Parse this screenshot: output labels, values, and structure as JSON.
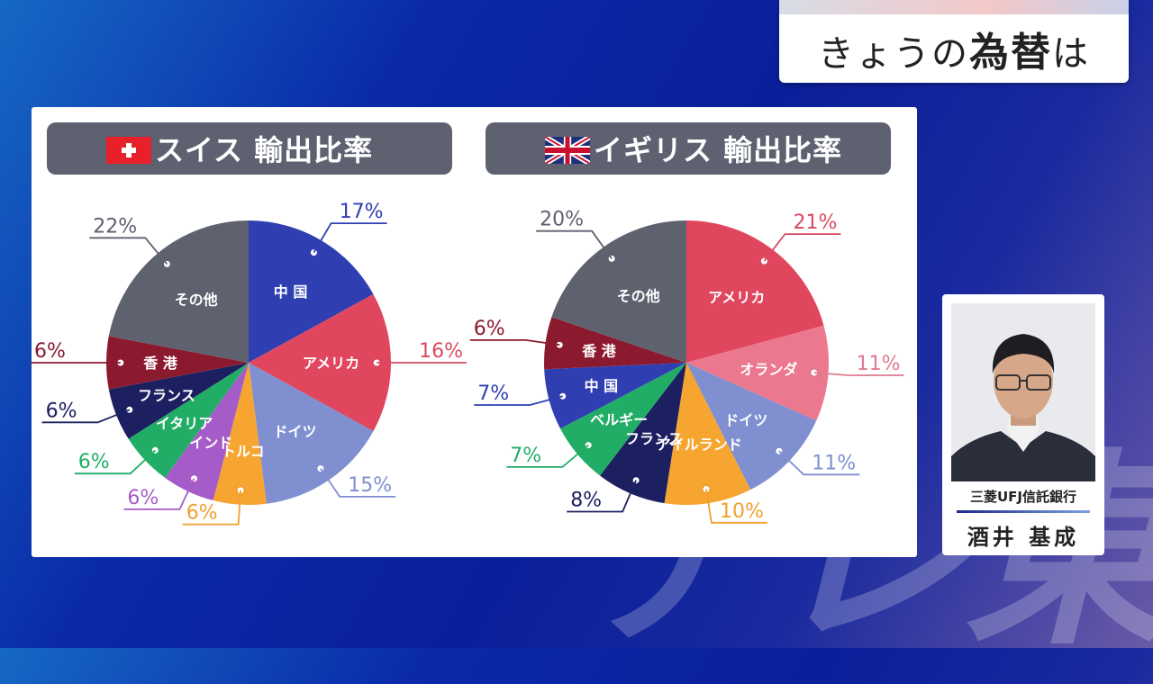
{
  "show_title": {
    "prefix": "きょうの",
    "bold": "為替",
    "suffix": "は"
  },
  "watermark": "テレ東",
  "speaker": {
    "organization": "三菱UFJ信託銀行",
    "name": "酒井 基成"
  },
  "chart_data": [
    {
      "type": "pie",
      "title": "スイス 輸出比率",
      "flag": "switzerland-flag",
      "start_angle_deg": 0,
      "direction": "clockwise",
      "slices": [
        {
          "label": "中 国",
          "value": 17,
          "percent_label": "17%",
          "color": "#2f3fb2",
          "value_color": "#2f3fb2",
          "text_color": "#ffffff"
        },
        {
          "label": "アメリカ",
          "value": 16,
          "percent_label": "16%",
          "color": "#e0475e",
          "value_color": "#d84a60",
          "text_color": "#ffffff"
        },
        {
          "label": "ドイツ",
          "value": 15,
          "percent_label": "15%",
          "color": "#7f8fd0",
          "value_color": "#7f8fd0",
          "text_color": "#ffffff"
        },
        {
          "label": "トルコ",
          "value": 6,
          "percent_label": "6%",
          "color": "#f6a530",
          "value_color": "#f0a030",
          "text_color": "#ffffff"
        },
        {
          "label": "インド",
          "value": 6,
          "percent_label": "6%",
          "color": "#a65cc8",
          "value_color": "#a65cc8",
          "text_color": "#ffffff"
        },
        {
          "label": "イタリア",
          "value": 6,
          "percent_label": "6%",
          "color": "#22ad66",
          "value_color": "#22ad66",
          "text_color": "#ffffff"
        },
        {
          "label": "フランス",
          "value": 6,
          "percent_label": "6%",
          "color": "#1d2060",
          "value_color": "#1d2060",
          "text_color": "#ffffff"
        },
        {
          "label": "香 港",
          "value": 6,
          "percent_label": "6%",
          "color": "#8c1a2e",
          "value_color": "#8c1a2e",
          "text_color": "#ffffff"
        },
        {
          "label": "その他",
          "value": 22,
          "percent_label": "22%",
          "color": "#5e626f",
          "value_color": "#5e626f",
          "text_color": "#ffffff"
        }
      ]
    },
    {
      "type": "pie",
      "title": "イギリス 輸出比率",
      "flag": "united-kingdom-flag",
      "start_angle_deg": 0,
      "direction": "clockwise",
      "slices": [
        {
          "label": "アメリカ",
          "value": 21,
          "percent_label": "21%",
          "color": "#e0475e",
          "value_color": "#d84a60",
          "text_color": "#ffffff"
        },
        {
          "label": "オランダ",
          "value": 11,
          "percent_label": "11%",
          "color": "#ec7890",
          "value_color": "#e07a90",
          "text_color": "#ffffff"
        },
        {
          "label": "ドイツ",
          "value": 11,
          "percent_label": "11%",
          "color": "#7f8fd0",
          "value_color": "#7f8fd0",
          "text_color": "#ffffff"
        },
        {
          "label": "アイルランド",
          "value": 10,
          "percent_label": "10%",
          "color": "#f6a530",
          "value_color": "#f0a030",
          "text_color": "#ffffff"
        },
        {
          "label": "フランス",
          "value": 8,
          "percent_label": "8%",
          "color": "#1d2060",
          "value_color": "#1d2060",
          "text_color": "#ffffff"
        },
        {
          "label": "ベルギー",
          "value": 7,
          "percent_label": "7%",
          "color": "#22ad66",
          "value_color": "#22ad66",
          "text_color": "#ffffff"
        },
        {
          "label": "中 国",
          "value": 7,
          "percent_label": "7%",
          "color": "#2f3fb2",
          "value_color": "#2f3fb2",
          "text_color": "#ffffff"
        },
        {
          "label": "香 港",
          "value": 6,
          "percent_label": "6%",
          "color": "#8c1a2e",
          "value_color": "#8c1a2e",
          "text_color": "#ffffff"
        },
        {
          "label": "その他",
          "value": 20,
          "percent_label": "20%",
          "color": "#5e626f",
          "value_color": "#5e626f",
          "text_color": "#ffffff"
        }
      ]
    }
  ]
}
